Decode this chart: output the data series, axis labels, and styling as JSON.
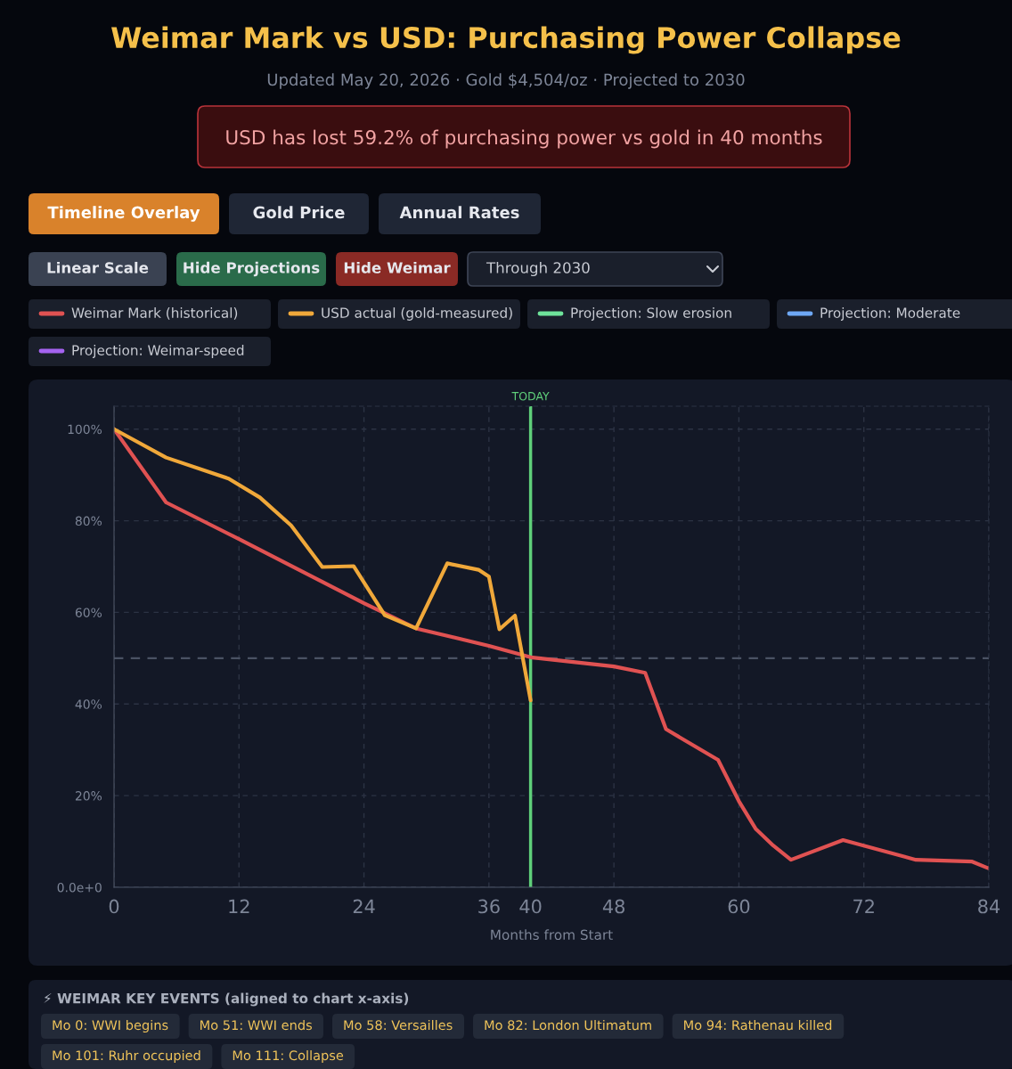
{
  "chart_data": {
    "type": "line",
    "title": "Weimar Mark vs USD: Purchasing Power Collapse",
    "subtitle": "Updated May 20, 2026 · Gold $4,504/oz · Projected to 2030",
    "xlabel": "Months from Start",
    "series": [
      {
        "name": "Weimar Mark (historical)",
        "color": "#e05252",
        "x": [
          0,
          5,
          12,
          18,
          24,
          29,
          36,
          40,
          48,
          51,
          53,
          58,
          60,
          61.6,
          63.3,
          65,
          70,
          77,
          82.4,
          84
        ],
        "values": [
          100,
          84,
          76,
          69,
          62,
          56.5,
          52.7,
          50.2,
          48.2,
          46.8,
          34.5,
          27.8,
          18.8,
          12.8,
          9.1,
          6,
          10.3,
          6,
          5.6,
          4.1
        ]
      },
      {
        "name": "USD actual (gold-measured)",
        "color": "#f0a83a",
        "x": [
          0,
          5,
          11,
          14,
          17,
          20,
          23,
          26,
          29,
          32,
          35,
          36,
          37,
          38.5,
          40
        ],
        "values": [
          100,
          93.8,
          89.2,
          85.1,
          79,
          69.9,
          70.1,
          59.4,
          56.5,
          70.7,
          69.3,
          67.8,
          56.3,
          59.3,
          40.8
        ]
      },
      {
        "name": "Projection: Slow erosion",
        "color": "#6ee39a"
      },
      {
        "name": "Projection: Moderate",
        "color": "#6ea8f5"
      },
      {
        "name": "Projection: Weimar-speed",
        "color": "#a463f0"
      }
    ],
    "xlim": [
      0,
      84
    ],
    "xticks": [
      0,
      12,
      24,
      36,
      40,
      48,
      60,
      72,
      84
    ],
    "ylim": [
      0,
      105
    ],
    "yticks": [
      {
        "value": 0,
        "label": "0.0e+0"
      },
      {
        "value": 20,
        "label": "20%"
      },
      {
        "value": 40,
        "label": "40%"
      },
      {
        "value": 60,
        "label": "60%"
      },
      {
        "value": 80,
        "label": "80%"
      },
      {
        "value": 100,
        "label": "100%"
      }
    ],
    "ref_lines": [
      {
        "axis": "x",
        "value": 40,
        "label": "TODAY",
        "color": "#5fcf7a",
        "line_style": "solid"
      },
      {
        "axis": "y",
        "value": 50,
        "label": null,
        "color": "#4a5263",
        "line_style": "dashed"
      }
    ],
    "grid": true,
    "legend": "top",
    "marker": "none",
    "line_style": "solid",
    "annotations": [
      "USD has lost 59.2% of purchasing power vs gold in 40 months",
      "Timeline Overlay",
      "Gold Price",
      "Annual Rates",
      "Linear Scale",
      "Hide Projections",
      "Hide Weimar",
      "Through 2030",
      "⚡ WEIMAR KEY EVENTS (aligned to chart x-axis)",
      "Mo 0: WWI begins",
      "Mo 51: WWI ends",
      "Mo 58: Versailles",
      "Mo 82: London Ultimatum",
      "Mo 94: Rathenau killed",
      "Mo 101: Ruhr occupied",
      "Mo 111: Collapse"
    ]
  }
}
